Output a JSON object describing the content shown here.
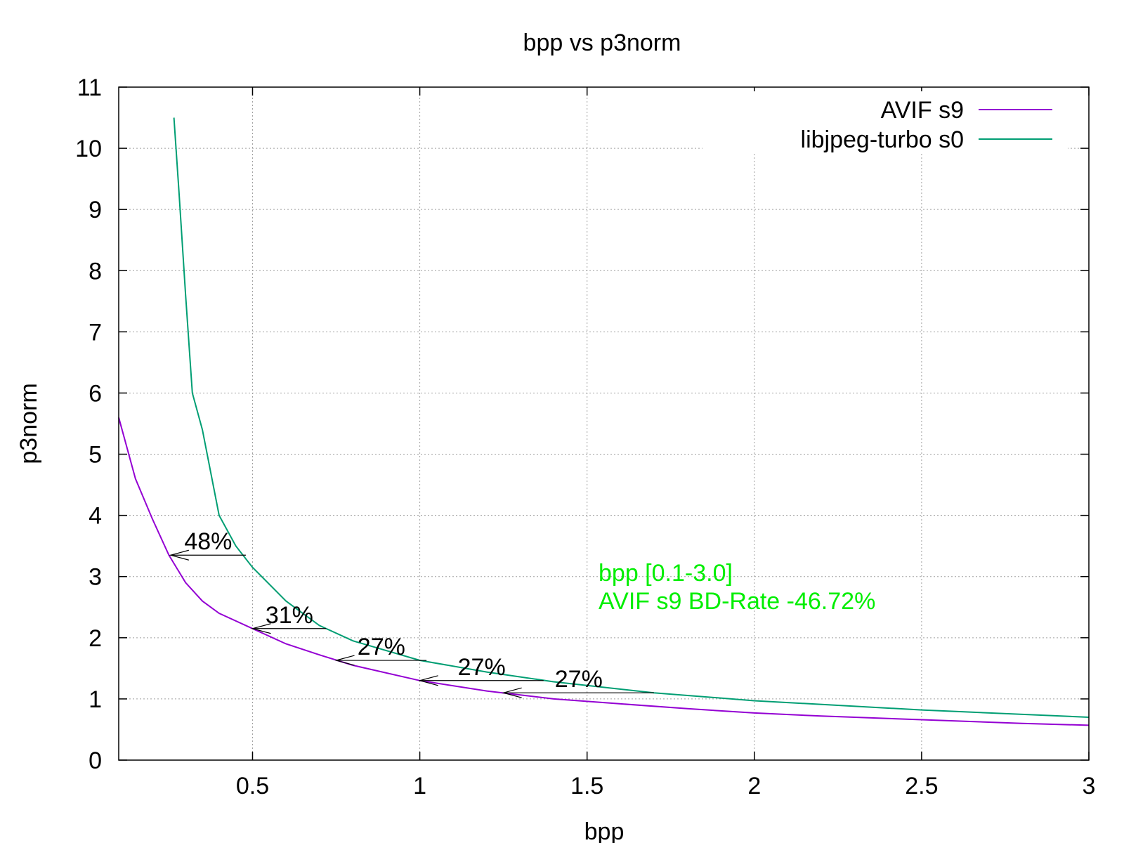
{
  "chart_data": {
    "type": "line",
    "title": "bpp vs p3norm",
    "xlabel": "bpp",
    "ylabel": "p3norm",
    "xlim": [
      0.1,
      3.0
    ],
    "ylim": [
      0,
      11
    ],
    "xticks": [
      0.5,
      1,
      1.5,
      2,
      2.5,
      3
    ],
    "xtick_labels": [
      "0.5",
      "1",
      "1.5",
      "2",
      "2.5",
      "3"
    ],
    "yticks": [
      0,
      1,
      2,
      3,
      4,
      5,
      6,
      7,
      8,
      9,
      10,
      11
    ],
    "ytick_labels": [
      "0",
      "1",
      "2",
      "3",
      "4",
      "5",
      "6",
      "7",
      "8",
      "9",
      "10",
      "11"
    ],
    "grid": true,
    "legend_position": "top-right",
    "series": [
      {
        "name": "AVIF s9",
        "color": "#9400d3",
        "x": [
          0.1,
          0.15,
          0.2,
          0.25,
          0.3,
          0.35,
          0.4,
          0.5,
          0.6,
          0.7,
          0.8,
          1.0,
          1.2,
          1.4,
          1.6,
          1.8,
          2.0,
          2.2,
          2.5,
          2.8,
          3.0
        ],
        "y": [
          5.6,
          4.6,
          3.95,
          3.35,
          2.9,
          2.6,
          2.4,
          2.15,
          1.9,
          1.72,
          1.55,
          1.3,
          1.13,
          1.0,
          0.92,
          0.84,
          0.77,
          0.72,
          0.66,
          0.6,
          0.57
        ]
      },
      {
        "name": "libjpeg-turbo s0",
        "color": "#009e73",
        "x": [
          0.265,
          0.28,
          0.3,
          0.32,
          0.35,
          0.4,
          0.45,
          0.5,
          0.6,
          0.7,
          0.8,
          1.0,
          1.2,
          1.4,
          1.7,
          2.0,
          2.5,
          3.0
        ],
        "y": [
          10.5,
          9.3,
          7.6,
          6.0,
          5.4,
          4.0,
          3.5,
          3.15,
          2.6,
          2.2,
          1.95,
          1.63,
          1.44,
          1.28,
          1.1,
          0.97,
          0.82,
          0.7
        ]
      }
    ],
    "annotations": [
      {
        "label": "48%",
        "y": 3.35,
        "from_x": 0.48,
        "to_x": 0.255
      },
      {
        "label": "31%",
        "y": 2.15,
        "from_x": 0.72,
        "to_x": 0.5
      },
      {
        "label": "27%",
        "y": 1.63,
        "from_x": 1.02,
        "to_x": 0.75
      },
      {
        "label": "27%",
        "y": 1.3,
        "from_x": 1.37,
        "to_x": 1.0
      },
      {
        "label": "27%",
        "y": 1.1,
        "from_x": 1.7,
        "to_x": 1.25
      }
    ],
    "note": {
      "color": "#00ee00",
      "lines": [
        "bpp [0.1-3.0]",
        "AVIF s9 BD-Rate -46.72%"
      ]
    }
  }
}
